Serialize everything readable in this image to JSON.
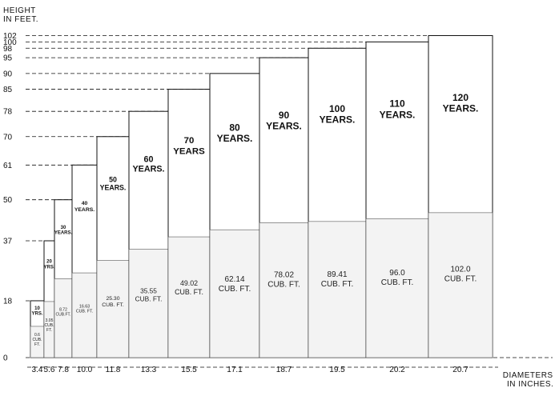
{
  "ylabel": [
    "HEIGHT",
    "IN FEET."
  ],
  "xlabel": [
    "DIAMETERS",
    "IN INCHES."
  ],
  "chart_data": {
    "type": "bar",
    "ylabel": "HEIGHT IN FEET.",
    "xlabel": "DIAMETERS IN INCHES.",
    "y_ticks": [
      0,
      18,
      37,
      50,
      61,
      70,
      78,
      85,
      90,
      95,
      98,
      100,
      102
    ],
    "ylim": [
      0,
      102
    ],
    "grid": false,
    "series": [
      {
        "age": "10 YRS.",
        "age_lines": [
          "10",
          "YRS."
        ],
        "diameter": "3.4",
        "height": 18,
        "volume": "0.6 CUB. FT.",
        "volume_lines": [
          "0.6",
          "CUB.",
          "FT."
        ]
      },
      {
        "age": "20 YRS.",
        "age_lines": [
          "20",
          "YRS."
        ],
        "diameter": "5.6",
        "height": 37,
        "volume": "3.05 CUB. FT.",
        "volume_lines": [
          "3.05",
          "CUB.",
          "FT."
        ]
      },
      {
        "age": "30 YEARS.",
        "age_lines": [
          "30",
          "YEARS."
        ],
        "diameter": "7.8",
        "height": 50,
        "volume": "8.72 CUB.FT.",
        "volume_lines": [
          "8.72",
          "CUB.FT."
        ]
      },
      {
        "age": "40 YEARS.",
        "age_lines": [
          "40",
          "YEARS."
        ],
        "diameter": "10.0",
        "height": 61,
        "volume": "16.63 CUB. FT.",
        "volume_lines": [
          "16.63",
          "CUB. FT."
        ]
      },
      {
        "age": "50 YEARS.",
        "age_lines": [
          "50",
          "YEARS."
        ],
        "diameter": "11.8",
        "height": 70,
        "volume": "25.30 CUB. FT.",
        "volume_lines": [
          "25.30",
          "CUB. FT."
        ]
      },
      {
        "age": "60 YEARS.",
        "age_lines": [
          "60",
          "YEARS."
        ],
        "diameter": "13.3",
        "height": 78,
        "volume": "35.55 CUB. FT.",
        "volume_lines": [
          "35.55",
          "CUB. FT."
        ]
      },
      {
        "age": "70 YEARS",
        "age_lines": [
          "70",
          "YEARS"
        ],
        "diameter": "15.5",
        "height": 85,
        "volume": "49.02 CUB. FT.",
        "volume_lines": [
          "49.02",
          "CUB. FT."
        ]
      },
      {
        "age": "80 YEARS.",
        "age_lines": [
          "80",
          "YEARS."
        ],
        "diameter": "17.1",
        "height": 90,
        "volume": "62.14 CUB. FT.",
        "volume_lines": [
          "62.14",
          "CUB. FT."
        ]
      },
      {
        "age": "90 YEARS.",
        "age_lines": [
          "90",
          "YEARS."
        ],
        "diameter": "18.7",
        "height": 95,
        "volume": "78.02 CUB. FT.",
        "volume_lines": [
          "78.02",
          "CUB. FT."
        ]
      },
      {
        "age": "100 YEARS.",
        "age_lines": [
          "100",
          "YEARS."
        ],
        "diameter": "19.5",
        "height": 98,
        "volume": "89.41 CUB. FT.",
        "volume_lines": [
          "89.41",
          "CUB. FT."
        ]
      },
      {
        "age": "110 YEARS.",
        "age_lines": [
          "110",
          "YEARS."
        ],
        "diameter": "20.2",
        "height": 100,
        "volume": "96.0 CUB. FT.",
        "volume_lines": [
          "96.0",
          "CUB. FT."
        ]
      },
      {
        "age": "120 YEARS.",
        "age_lines": [
          "120",
          "YEARS."
        ],
        "diameter": "20.7",
        "height": 102,
        "volume": "102.0 CUB. FT.",
        "volume_lines": [
          "102.0",
          "CUB. FT."
        ]
      }
    ]
  }
}
